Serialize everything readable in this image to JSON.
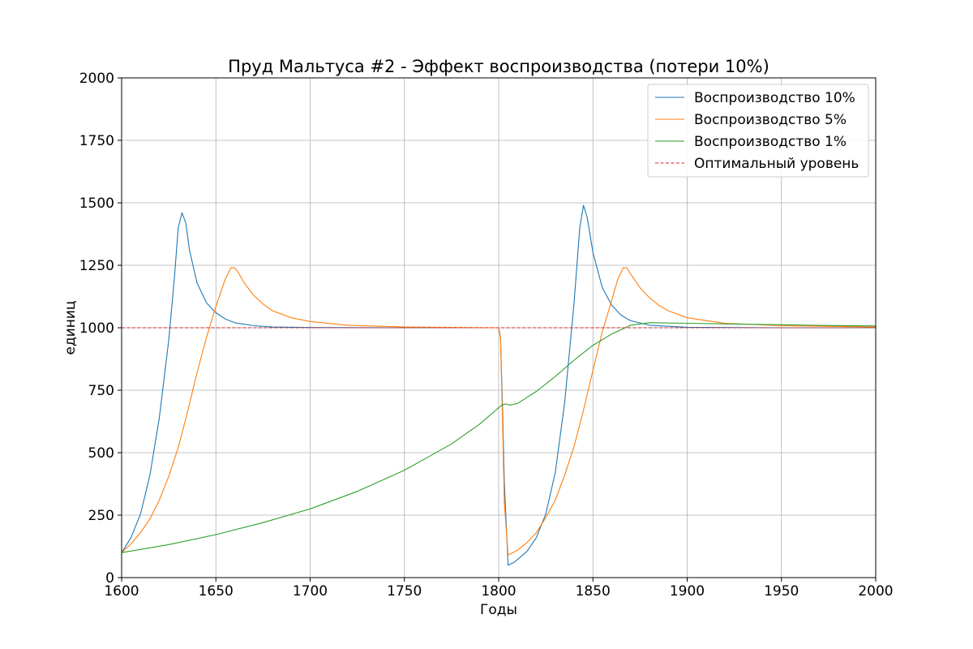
{
  "chart_data": {
    "type": "line",
    "title": "Пруд Мальтуса #2 - Эффект воспроизводства (потери 10%)",
    "xlabel": "Годы",
    "ylabel": "единиц",
    "xlim": [
      1600,
      2000
    ],
    "ylim": [
      0,
      2000
    ],
    "xticks": [
      1600,
      1650,
      1700,
      1750,
      1800,
      1850,
      1900,
      1950,
      2000
    ],
    "yticks": [
      0,
      250,
      500,
      750,
      1000,
      1250,
      1500,
      1750,
      2000
    ],
    "grid": true,
    "legend_position": "top-right",
    "series": [
      {
        "name": "Воспроизводство 10%",
        "color": "#1f77b4",
        "style": "solid",
        "points": [
          [
            1600,
            100
          ],
          [
            1605,
            160
          ],
          [
            1610,
            255
          ],
          [
            1615,
            410
          ],
          [
            1620,
            640
          ],
          [
            1625,
            950
          ],
          [
            1628,
            1200
          ],
          [
            1630,
            1400
          ],
          [
            1632,
            1460
          ],
          [
            1634,
            1420
          ],
          [
            1636,
            1310
          ],
          [
            1640,
            1180
          ],
          [
            1645,
            1100
          ],
          [
            1650,
            1060
          ],
          [
            1655,
            1035
          ],
          [
            1660,
            1020
          ],
          [
            1670,
            1008
          ],
          [
            1680,
            1003
          ],
          [
            1700,
            1001
          ],
          [
            1750,
            1000
          ],
          [
            1800,
            1000
          ],
          [
            1801,
            960
          ],
          [
            1802,
            700
          ],
          [
            1803,
            380
          ],
          [
            1805,
            50
          ],
          [
            1808,
            60
          ],
          [
            1812,
            85
          ],
          [
            1815,
            105
          ],
          [
            1820,
            160
          ],
          [
            1825,
            255
          ],
          [
            1830,
            420
          ],
          [
            1835,
            700
          ],
          [
            1840,
            1100
          ],
          [
            1843,
            1400
          ],
          [
            1845,
            1490
          ],
          [
            1847,
            1440
          ],
          [
            1850,
            1300
          ],
          [
            1855,
            1160
          ],
          [
            1860,
            1090
          ],
          [
            1865,
            1050
          ],
          [
            1870,
            1028
          ],
          [
            1880,
            1010
          ],
          [
            1900,
            1002
          ],
          [
            1950,
            1000
          ],
          [
            2000,
            1000
          ]
        ]
      },
      {
        "name": "Воспроизводство 5%",
        "color": "#ff7f0e",
        "style": "solid",
        "points": [
          [
            1600,
            100
          ],
          [
            1605,
            135
          ],
          [
            1610,
            180
          ],
          [
            1615,
            235
          ],
          [
            1620,
            310
          ],
          [
            1625,
            405
          ],
          [
            1630,
            520
          ],
          [
            1635,
            665
          ],
          [
            1640,
            820
          ],
          [
            1645,
            960
          ],
          [
            1650,
            1085
          ],
          [
            1655,
            1195
          ],
          [
            1658,
            1240
          ],
          [
            1660,
            1240
          ],
          [
            1662,
            1220
          ],
          [
            1665,
            1180
          ],
          [
            1670,
            1130
          ],
          [
            1675,
            1095
          ],
          [
            1680,
            1068
          ],
          [
            1690,
            1040
          ],
          [
            1700,
            1025
          ],
          [
            1720,
            1010
          ],
          [
            1750,
            1003
          ],
          [
            1780,
            1001
          ],
          [
            1800,
            1000
          ],
          [
            1801,
            960
          ],
          [
            1802,
            650
          ],
          [
            1803,
            300
          ],
          [
            1805,
            90
          ],
          [
            1810,
            110
          ],
          [
            1815,
            140
          ],
          [
            1820,
            180
          ],
          [
            1825,
            240
          ],
          [
            1830,
            310
          ],
          [
            1835,
            410
          ],
          [
            1840,
            525
          ],
          [
            1845,
            670
          ],
          [
            1850,
            830
          ],
          [
            1855,
            985
          ],
          [
            1860,
            1110
          ],
          [
            1863,
            1190
          ],
          [
            1866,
            1240
          ],
          [
            1868,
            1240
          ],
          [
            1870,
            1215
          ],
          [
            1875,
            1160
          ],
          [
            1880,
            1120
          ],
          [
            1885,
            1090
          ],
          [
            1890,
            1068
          ],
          [
            1900,
            1040
          ],
          [
            1920,
            1018
          ],
          [
            1950,
            1008
          ],
          [
            2000,
            1003
          ]
        ]
      },
      {
        "name": "Воспроизводство 1%",
        "color": "#2ca02c",
        "style": "solid",
        "points": [
          [
            1600,
            100
          ],
          [
            1625,
            132
          ],
          [
            1650,
            172
          ],
          [
            1675,
            220
          ],
          [
            1700,
            275
          ],
          [
            1725,
            345
          ],
          [
            1750,
            430
          ],
          [
            1775,
            535
          ],
          [
            1790,
            615
          ],
          [
            1800,
            680
          ],
          [
            1802,
            692
          ],
          [
            1804,
            695
          ],
          [
            1806,
            690
          ],
          [
            1810,
            697
          ],
          [
            1820,
            745
          ],
          [
            1830,
            805
          ],
          [
            1840,
            870
          ],
          [
            1850,
            930
          ],
          [
            1860,
            975
          ],
          [
            1870,
            1010
          ],
          [
            1880,
            1020
          ],
          [
            1900,
            1018
          ],
          [
            1925,
            1015
          ],
          [
            1950,
            1012
          ],
          [
            1975,
            1009
          ],
          [
            2000,
            1007
          ]
        ]
      },
      {
        "name": "Оптимальный уровень",
        "color": "#d62728",
        "style": "dashed",
        "points": [
          [
            1600,
            1000
          ],
          [
            2000,
            1000
          ]
        ]
      }
    ]
  }
}
